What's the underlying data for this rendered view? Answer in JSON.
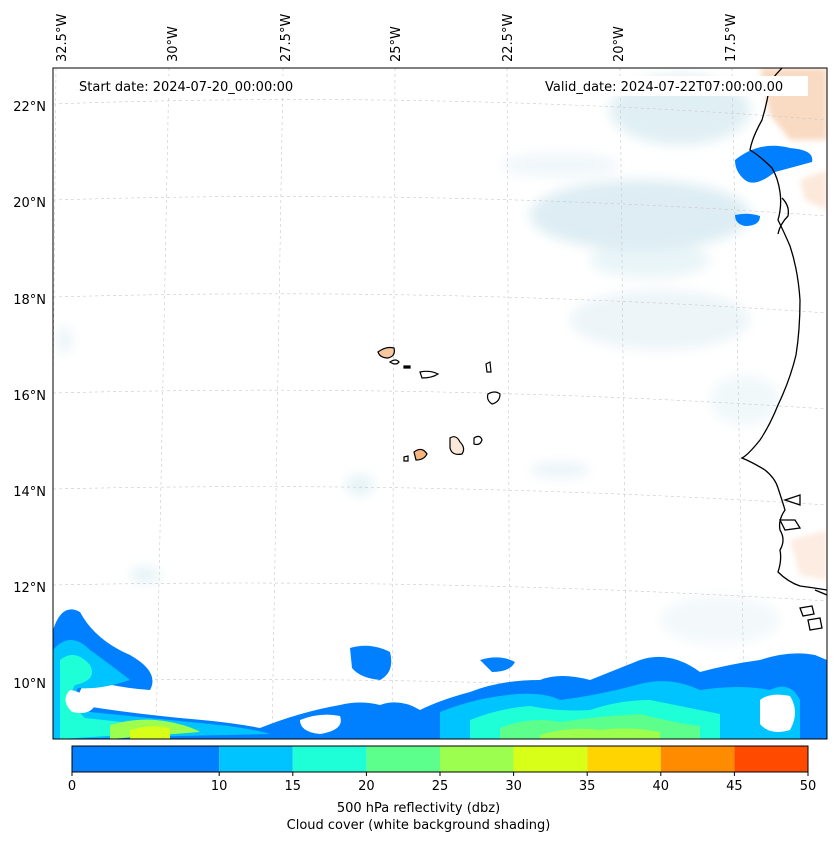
{
  "header": {
    "start_date": "Start date: 2024-07-20_00:00:00",
    "valid_date": "Valid_date: 2024-07-22T07:00:00.00"
  },
  "axes": {
    "lon_labels": [
      "32.5°W",
      "30°W",
      "27.5°W",
      "25°W",
      "22.5°W",
      "20°W",
      "17.5°W"
    ],
    "lat_labels": [
      "22°N",
      "20°N",
      "18°N",
      "16°N",
      "14°N",
      "12°N",
      "10°N"
    ]
  },
  "colorbar": {
    "ticks": [
      "0",
      "5",
      "10",
      "15",
      "20",
      "25",
      "30",
      "35",
      "40",
      "45",
      "50"
    ],
    "tick_labels_shown": [
      "0",
      "10",
      "15",
      "20",
      "25",
      "30",
      "35",
      "40",
      "45",
      "50"
    ],
    "colors": [
      "#0080ff",
      "#00c4ff",
      "#1effd8",
      "#5dff8c",
      "#9cff50",
      "#d8ff18",
      "#ffd400",
      "#ff8c00",
      "#ff4a00"
    ],
    "label": "500 hPa reflectivity (dbz)",
    "sublabel": "Cloud cover (white background shading)"
  },
  "colors": {
    "land_warm": "#f6b47e",
    "cloud_light": "#d6e9f0",
    "coast": "#000000"
  }
}
